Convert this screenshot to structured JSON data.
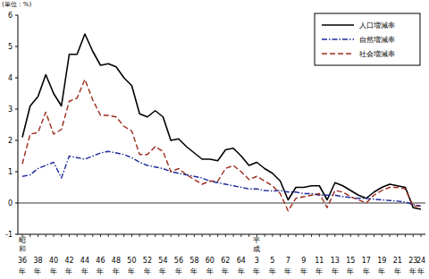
{
  "chart_data": {
    "type": "line",
    "y_label": "(単位：%)",
    "categories": [
      "36年",
      null,
      "38年",
      null,
      "40年",
      null,
      "42年",
      null,
      "44年",
      null,
      "46年",
      null,
      "48年",
      null,
      "50年",
      null,
      "52年",
      null,
      "54年",
      null,
      "56年",
      null,
      "58年",
      null,
      "60年",
      null,
      "62年",
      null,
      "64年",
      null,
      "3年",
      null,
      "5年",
      null,
      "7年",
      null,
      "9年",
      null,
      "11年",
      null,
      "13年",
      null,
      "15年",
      null,
      "17年",
      null,
      "19年",
      null,
      "21年",
      null,
      "23年",
      "24年"
    ],
    "annotations": [
      {
        "text": "昭和",
        "category": "36年"
      },
      {
        "text": "平成",
        "category": "3年"
      }
    ],
    "series": [
      {
        "name": "人口増減率",
        "color": "#000000",
        "line_style": "solid",
        "values": [
          2.1,
          3.1,
          3.4,
          4.1,
          3.5,
          3.1,
          4.75,
          4.75,
          5.4,
          4.85,
          4.4,
          4.45,
          4.35,
          4.0,
          3.75,
          2.85,
          2.75,
          2.95,
          2.75,
          2.0,
          2.05,
          1.8,
          1.6,
          1.4,
          1.4,
          1.35,
          1.7,
          1.75,
          1.5,
          1.2,
          1.3,
          1.1,
          0.95,
          0.7,
          0.1,
          0.5,
          0.5,
          0.55,
          0.55,
          0.1,
          0.65,
          0.55,
          0.4,
          0.25,
          0.15,
          0.35,
          0.5,
          0.6,
          0.55,
          0.5,
          -0.15,
          -0.2
        ]
      },
      {
        "name": "自然増減率",
        "color": "#1c2a9c",
        "line_style": "dashdot",
        "values": [
          0.85,
          0.9,
          1.1,
          1.2,
          1.3,
          0.8,
          1.5,
          1.45,
          1.4,
          1.5,
          1.6,
          1.65,
          1.6,
          1.55,
          1.45,
          1.3,
          1.2,
          1.15,
          1.1,
          1.0,
          0.95,
          0.9,
          0.85,
          0.8,
          0.7,
          0.65,
          0.6,
          0.55,
          0.5,
          0.45,
          0.45,
          0.4,
          0.38,
          0.4,
          0.35,
          0.35,
          0.3,
          0.3,
          0.25,
          0.25,
          0.25,
          0.2,
          0.18,
          0.15,
          0.15,
          0.12,
          0.1,
          0.08,
          0.06,
          0.03,
          -0.05,
          -0.1
        ]
      },
      {
        "name": "社会増減率",
        "color": "#9c2a1c",
        "line_style": "dashed",
        "values": [
          1.25,
          2.2,
          2.25,
          2.9,
          2.2,
          2.35,
          3.25,
          3.35,
          3.95,
          3.3,
          2.8,
          2.8,
          2.75,
          2.45,
          2.3,
          1.55,
          1.55,
          1.8,
          1.65,
          1.0,
          1.1,
          0.9,
          0.75,
          0.6,
          0.7,
          0.7,
          1.1,
          1.2,
          1.0,
          0.75,
          0.85,
          0.7,
          0.55,
          0.3,
          -0.25,
          0.15,
          0.2,
          0.25,
          0.3,
          -0.15,
          0.4,
          0.35,
          0.2,
          0.1,
          0.0,
          0.25,
          0.4,
          0.5,
          0.5,
          0.45,
          -0.1,
          -0.1
        ]
      }
    ],
    "ylim": [
      -1,
      6
    ],
    "yticks": [
      -1,
      0,
      1,
      2,
      3,
      4,
      5,
      6
    ],
    "grid": false,
    "legend": "top-right"
  }
}
